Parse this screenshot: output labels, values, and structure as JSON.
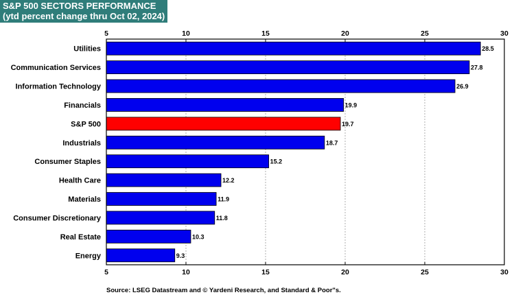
{
  "header": {
    "title": "S&P 500 SECTORS PERFORMANCE",
    "subtitle": "(ytd percent change thru Oct 02, 2024)"
  },
  "footer": {
    "source": "Source: LSEG Datastream and © Yardeni Research, and Standard & Poor\"s."
  },
  "colors": {
    "bar": "#0000ee",
    "highlight": "#ff0000",
    "header_bg": "#2f7d7a"
  },
  "chart_data": {
    "type": "bar",
    "orientation": "horizontal",
    "title": "S&P 500 SECTORS PERFORMANCE",
    "subtitle": "(ytd percent change thru Oct 02, 2024)",
    "categories": [
      "Utilities",
      "Communication Services",
      "Information Technology",
      "Financials",
      "S&P 500",
      "Industrials",
      "Consumer Staples",
      "Health Care",
      "Materials",
      "Consumer Discretionary",
      "Real Estate",
      "Energy"
    ],
    "values": [
      28.5,
      27.8,
      26.9,
      19.9,
      19.7,
      18.7,
      15.2,
      12.2,
      11.9,
      11.8,
      10.3,
      9.3
    ],
    "value_labels": [
      "28.5",
      "27.8",
      "26.9",
      "19.9",
      "19.7",
      "18.7",
      "15.2",
      "12.2",
      "11.9",
      "11.8",
      "10.3",
      "9.3"
    ],
    "highlight_category": "S&P 500",
    "xlim": [
      5,
      30
    ],
    "xticks": [
      "5",
      "10",
      "15",
      "20",
      "25",
      "30"
    ],
    "xtick_values": [
      5,
      10,
      15,
      20,
      25,
      30
    ],
    "grid": true,
    "axis_labels_top_and_bottom": true
  }
}
